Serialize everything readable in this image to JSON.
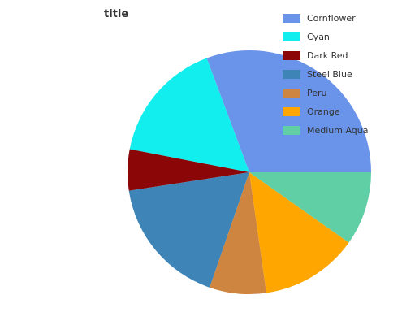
{
  "chart_data": {
    "type": "pie",
    "title": "title",
    "slices": [
      {
        "name": "Cornflower",
        "value": 29.8,
        "color": "#6a93ea"
      },
      {
        "name": "Cyan",
        "value": 15.8,
        "color": "#12eeee"
      },
      {
        "name": "Dark Red",
        "value": 5.3,
        "color": "#8b0707"
      },
      {
        "name": "Steel Blue",
        "value": 16.8,
        "color": "#3f84b6"
      },
      {
        "name": "Peru",
        "value": 7.3,
        "color": "#cd8540"
      },
      {
        "name": "Orange",
        "value": 12.6,
        "color": "#ffa600"
      },
      {
        "name": "Medium Aqua",
        "value": 9.5,
        "color": "#61cfa6"
      }
    ],
    "legend_position": "right"
  }
}
